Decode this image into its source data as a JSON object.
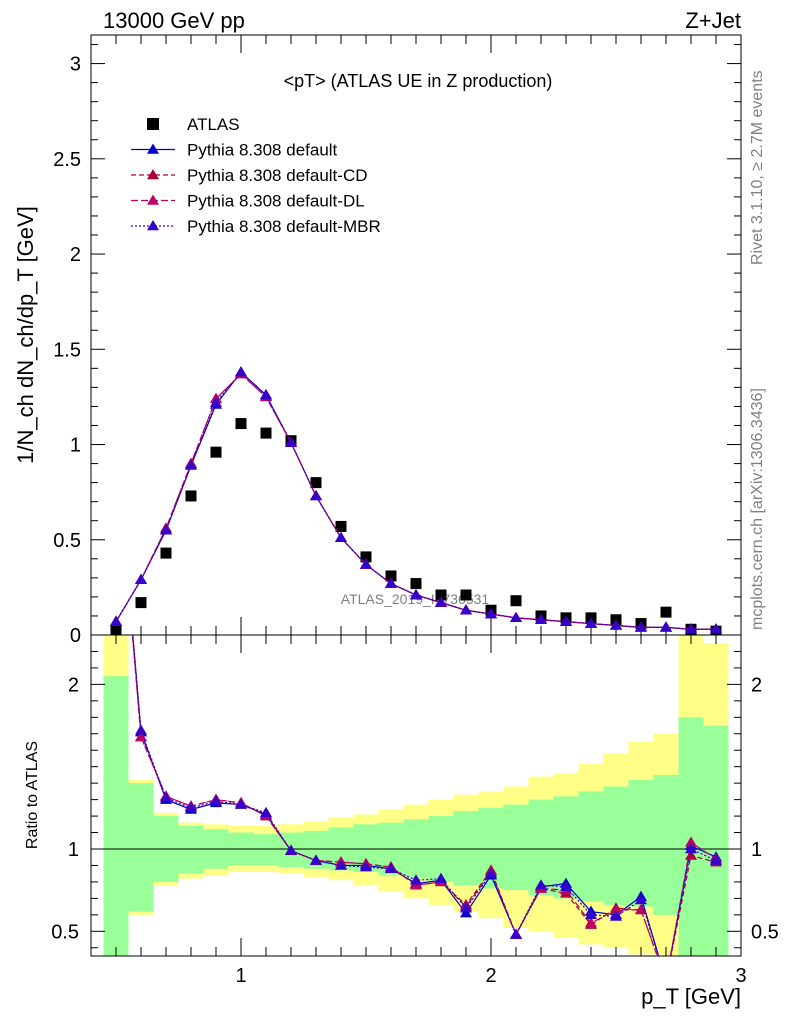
{
  "header": {
    "energy_label": "13000 GeV pp",
    "process_label": "Z+Jet"
  },
  "side_labels": {
    "rivet": "Rivet 3.1.10, ≥ 2.7M events",
    "mcplots": "mcplots.cern.ch [arXiv:1306.3436]"
  },
  "watermark": "ATLAS_2019_I1736531",
  "colors": {
    "data": "#000000",
    "default": "#0000cc",
    "cd": "#aa0033",
    "dl": "#bb0066",
    "mbr": "#3300cc",
    "band_inner": "#99ff99",
    "band_outer": "#ffff88"
  },
  "chart_data": [
    {
      "type": "scatter",
      "panel": "main",
      "title": "<pT> (ATLAS UE in Z production)",
      "ylabel": "1/N_ch dN_ch/dp_T [GeV]",
      "xlim": [
        0.4,
        3.0
      ],
      "ylim": [
        0,
        3.15
      ],
      "yticks": [
        "0",
        "0.5",
        "1",
        "1.5",
        "2",
        "2.5",
        "3"
      ],
      "x": [
        0.5,
        0.6,
        0.7,
        0.8,
        0.9,
        1.0,
        1.1,
        1.2,
        1.3,
        1.4,
        1.5,
        1.6,
        1.7,
        1.8,
        1.9,
        2.0,
        2.1,
        2.2,
        2.3,
        2.4,
        2.5,
        2.6,
        2.7,
        2.8,
        2.9
      ],
      "series": [
        {
          "name": "ATLAS",
          "style": "data",
          "values": [
            0.02,
            0.17,
            0.43,
            0.73,
            0.96,
            1.11,
            1.06,
            1.02,
            0.8,
            0.57,
            0.41,
            0.31,
            0.27,
            0.21,
            0.21,
            0.13,
            0.18,
            0.1,
            0.09,
            0.09,
            0.08,
            0.06,
            0.12,
            0.03,
            0.02
          ]
        },
        {
          "name": "Pythia 8.308 default",
          "style": "default",
          "values": [
            0.07,
            0.29,
            0.55,
            0.89,
            1.21,
            1.38,
            1.26,
            1.01,
            0.73,
            0.51,
            0.37,
            0.27,
            0.21,
            0.17,
            0.13,
            0.11,
            0.09,
            0.08,
            0.07,
            0.06,
            0.05,
            0.04,
            0.04,
            0.03,
            0.03
          ]
        },
        {
          "name": "Pythia 8.308 default-CD",
          "style": "cd",
          "values": [
            0.07,
            0.29,
            0.56,
            0.9,
            1.24,
            1.37,
            1.25,
            1.01,
            0.73,
            0.51,
            0.37,
            0.27,
            0.21,
            0.17,
            0.13,
            0.11,
            0.09,
            0.08,
            0.07,
            0.06,
            0.05,
            0.04,
            0.04,
            0.03,
            0.03
          ]
        },
        {
          "name": "Pythia 8.308 default-DL",
          "style": "dl",
          "values": [
            0.07,
            0.29,
            0.56,
            0.9,
            1.24,
            1.37,
            1.25,
            1.01,
            0.73,
            0.51,
            0.37,
            0.27,
            0.21,
            0.17,
            0.13,
            0.11,
            0.09,
            0.08,
            0.07,
            0.06,
            0.05,
            0.04,
            0.04,
            0.03,
            0.03
          ]
        },
        {
          "name": "Pythia 8.308 default-MBR",
          "style": "mbr",
          "values": [
            0.07,
            0.29,
            0.55,
            0.89,
            1.22,
            1.38,
            1.26,
            1.01,
            0.73,
            0.51,
            0.37,
            0.27,
            0.21,
            0.17,
            0.13,
            0.11,
            0.09,
            0.08,
            0.07,
            0.06,
            0.05,
            0.04,
            0.04,
            0.03,
            0.03
          ]
        }
      ]
    },
    {
      "type": "line",
      "panel": "ratio",
      "ylabel": "Ratio to ATLAS",
      "xlabel": "p_T [GeV]",
      "xlim": [
        0.4,
        3.0
      ],
      "ylim": [
        0.35,
        2.3
      ],
      "yticks": [
        "0.5",
        "1",
        "2"
      ],
      "xticks": [
        "1",
        "2",
        "3"
      ],
      "reference_line": 1,
      "x": [
        0.5,
        0.6,
        0.7,
        0.8,
        0.9,
        1.0,
        1.1,
        1.2,
        1.3,
        1.4,
        1.5,
        1.6,
        1.7,
        1.8,
        1.9,
        2.0,
        2.1,
        2.2,
        2.3,
        2.4,
        2.5,
        2.6,
        2.7,
        2.8,
        2.9
      ],
      "uncertainty_inner": {
        "low": [
          0.0,
          0.62,
          0.8,
          0.85,
          0.88,
          0.9,
          0.9,
          0.89,
          0.88,
          0.87,
          0.86,
          0.84,
          0.82,
          0.8,
          0.78,
          0.76,
          0.75,
          0.72,
          0.7,
          0.68,
          0.66,
          0.65,
          0.6,
          0.0,
          0.0
        ],
        "high": [
          2.05,
          1.4,
          1.2,
          1.14,
          1.12,
          1.1,
          1.09,
          1.1,
          1.11,
          1.13,
          1.15,
          1.16,
          1.18,
          1.2,
          1.23,
          1.25,
          1.27,
          1.3,
          1.32,
          1.35,
          1.38,
          1.42,
          1.45,
          1.8,
          1.75
        ]
      },
      "uncertainty_outer": {
        "low": [
          0.0,
          0.6,
          0.78,
          0.82,
          0.84,
          0.86,
          0.86,
          0.85,
          0.83,
          0.81,
          0.78,
          0.74,
          0.7,
          0.66,
          0.62,
          0.58,
          0.52,
          0.5,
          0.46,
          0.42,
          0.4,
          0.36,
          0.0,
          0.0,
          0.0
        ],
        "high": [
          2.35,
          1.42,
          1.22,
          1.16,
          1.15,
          1.14,
          1.14,
          1.15,
          1.17,
          1.19,
          1.21,
          1.24,
          1.27,
          1.3,
          1.33,
          1.35,
          1.38,
          1.44,
          1.46,
          1.52,
          1.58,
          1.65,
          1.7,
          2.3,
          2.25
        ]
      },
      "series": [
        {
          "name": "Pythia 8.308 default",
          "style": "default",
          "values": [
            3.5,
            1.71,
            1.3,
            1.24,
            1.28,
            1.27,
            1.21,
            0.99,
            0.93,
            0.9,
            0.9,
            0.88,
            0.79,
            0.81,
            0.61,
            0.84,
            0.48,
            0.77,
            0.79,
            0.62,
            0.6,
            0.71,
            0.2,
            1.02,
            0.95
          ]
        },
        {
          "name": "Pythia 8.308 default-CD",
          "style": "cd",
          "values": [
            3.5,
            1.68,
            1.32,
            1.26,
            1.3,
            1.28,
            1.2,
            0.99,
            0.93,
            0.92,
            0.91,
            0.89,
            0.78,
            0.8,
            0.66,
            0.87,
            0.48,
            0.76,
            0.73,
            0.54,
            0.64,
            0.63,
            0.2,
            0.96,
            0.92
          ]
        },
        {
          "name": "Pythia 8.308 default-DL",
          "style": "dl",
          "values": [
            3.5,
            1.68,
            1.32,
            1.26,
            1.3,
            1.28,
            1.2,
            0.99,
            0.93,
            0.92,
            0.91,
            0.89,
            0.78,
            0.8,
            0.65,
            0.86,
            0.48,
            0.76,
            0.75,
            0.55,
            0.63,
            0.63,
            0.2,
            1.04,
            0.94
          ]
        },
        {
          "name": "Pythia 8.308 default-MBR",
          "style": "mbr",
          "values": [
            3.5,
            1.72,
            1.31,
            1.25,
            1.29,
            1.27,
            1.22,
            0.99,
            0.93,
            0.9,
            0.89,
            0.88,
            0.81,
            0.82,
            0.64,
            0.85,
            0.48,
            0.78,
            0.77,
            0.6,
            0.59,
            0.69,
            0.2,
            1.0,
            0.93
          ]
        }
      ]
    }
  ]
}
